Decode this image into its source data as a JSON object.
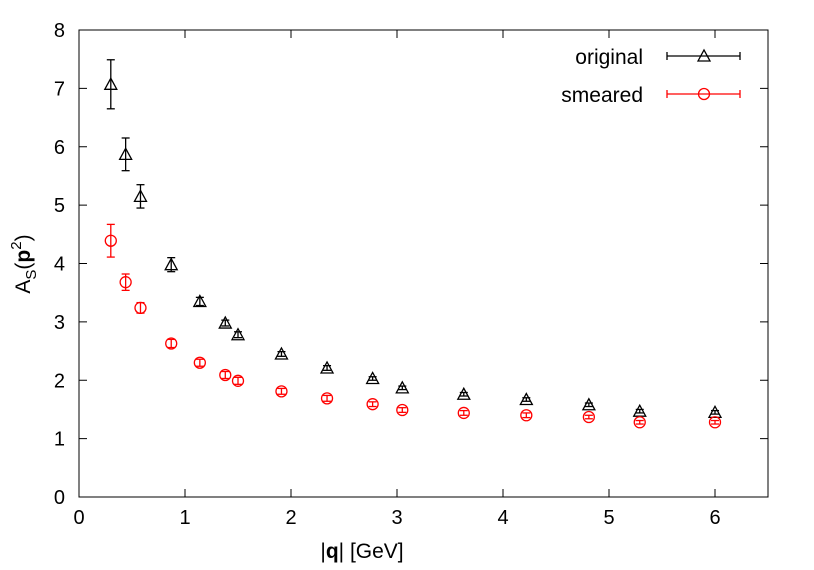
{
  "chart_data": {
    "type": "scatter",
    "title": "",
    "xlabel": {
      "pre": "|",
      "bold": "q",
      "post": "| [GeV]"
    },
    "ylabel": {
      "base": "A",
      "sub": "S",
      "open": "(",
      "bold": "p",
      "sup": "2",
      "close": ")"
    },
    "xlim": [
      0,
      6.5
    ],
    "ylim": [
      0,
      8
    ],
    "xticks": [
      "0",
      "1",
      "2",
      "3",
      "4",
      "5",
      "6"
    ],
    "yticks": [
      "0",
      "1",
      "2",
      "3",
      "4",
      "5",
      "6",
      "7",
      "8"
    ],
    "grid": false,
    "legend_position": "top-right",
    "series": [
      {
        "name": "original",
        "marker": "triangle",
        "color": "#000000",
        "x": [
          0.3,
          0.44,
          0.58,
          0.87,
          1.14,
          1.38,
          1.5,
          1.91,
          2.34,
          2.77,
          3.05,
          3.63,
          4.22,
          4.81,
          5.29,
          6.0
        ],
        "y": [
          7.07,
          5.87,
          5.15,
          3.98,
          3.35,
          2.98,
          2.78,
          2.45,
          2.21,
          2.03,
          1.87,
          1.76,
          1.67,
          1.58,
          1.47,
          1.45
        ],
        "err": [
          0.42,
          0.28,
          0.2,
          0.12,
          0.07,
          0.05,
          0.05,
          0.04,
          0.04,
          0.03,
          0.03,
          0.03,
          0.03,
          0.03,
          0.03,
          0.03
        ]
      },
      {
        "name": "smeared",
        "marker": "circle",
        "color": "#ff0000",
        "x": [
          0.3,
          0.44,
          0.58,
          0.87,
          1.14,
          1.38,
          1.5,
          1.91,
          2.34,
          2.77,
          3.05,
          3.63,
          4.22,
          4.81,
          5.29,
          6.0
        ],
        "y": [
          4.39,
          3.68,
          3.24,
          2.63,
          2.3,
          2.09,
          1.99,
          1.81,
          1.69,
          1.59,
          1.49,
          1.44,
          1.4,
          1.37,
          1.28,
          1.28
        ],
        "err": [
          0.28,
          0.14,
          0.09,
          0.07,
          0.06,
          0.06,
          0.06,
          0.05,
          0.05,
          0.04,
          0.04,
          0.04,
          0.04,
          0.03,
          0.03,
          0.03
        ]
      }
    ]
  }
}
